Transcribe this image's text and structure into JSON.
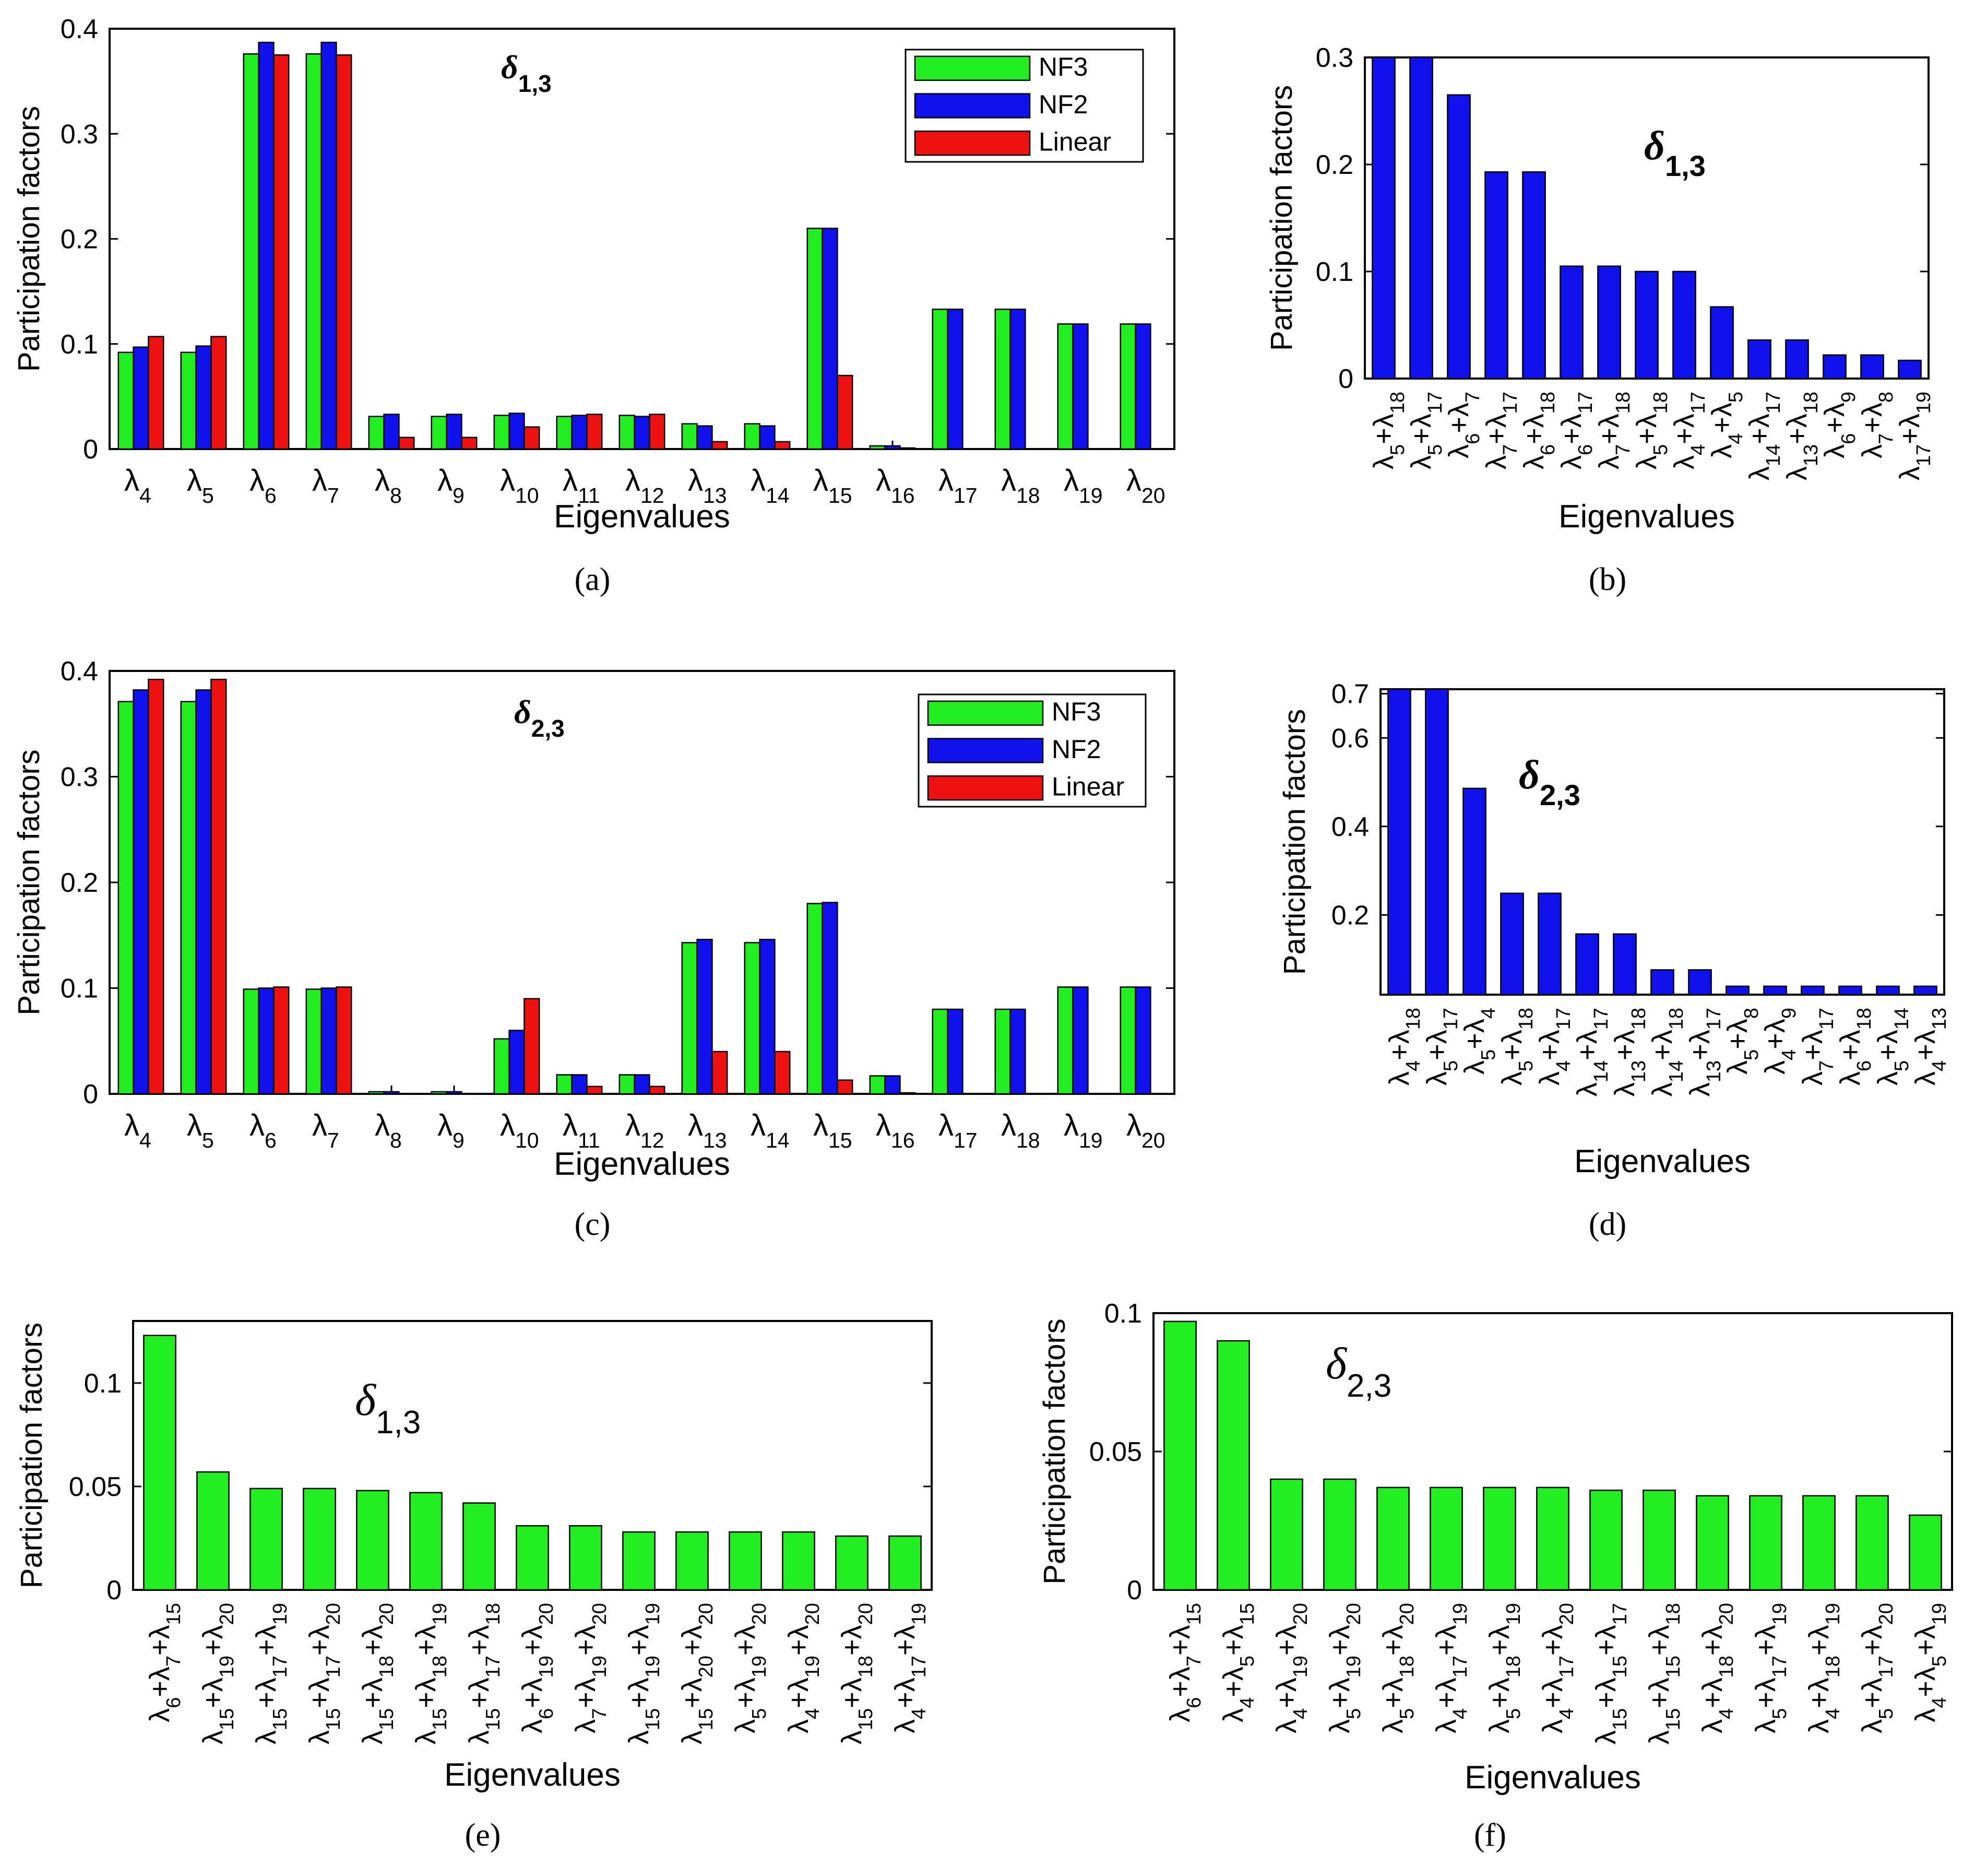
{
  "chart_data": [
    {
      "id": "a",
      "type": "bar",
      "panel_label": "(a)",
      "annotation": {
        "base": "δ",
        "sub": "1,3",
        "bold": true
      },
      "xlabel": "Eigenvalues",
      "ylabel": "Participation factors",
      "ylim": [
        0,
        0.4
      ],
      "yticks": [
        "0",
        "0.1",
        "0.2",
        "0.3",
        "0.4"
      ],
      "categories": [
        {
          "b": "λ",
          "s": "4"
        },
        {
          "b": "λ",
          "s": "5"
        },
        {
          "b": "λ",
          "s": "6"
        },
        {
          "b": "λ",
          "s": "7"
        },
        {
          "b": "λ",
          "s": "8"
        },
        {
          "b": "λ",
          "s": "9"
        },
        {
          "b": "λ",
          "s": "10"
        },
        {
          "b": "λ",
          "s": "11"
        },
        {
          "b": "λ",
          "s": "12"
        },
        {
          "b": "λ",
          "s": "13"
        },
        {
          "b": "λ",
          "s": "14"
        },
        {
          "b": "λ",
          "s": "15"
        },
        {
          "b": "λ",
          "s": "16"
        },
        {
          "b": "λ",
          "s": "17"
        },
        {
          "b": "λ",
          "s": "18"
        },
        {
          "b": "λ",
          "s": "19"
        },
        {
          "b": "λ",
          "s": "20"
        }
      ],
      "legend": "top-right",
      "series": [
        {
          "name": "NF3",
          "color": "#22ee22",
          "values": [
            0.092,
            0.092,
            0.376,
            0.376,
            0.031,
            0.031,
            0.032,
            0.031,
            0.032,
            0.024,
            0.024,
            0.21,
            0.003,
            0.133,
            0.133,
            0.119,
            0.119
          ]
        },
        {
          "name": "NF2",
          "color": "#1111ee",
          "values": [
            0.097,
            0.098,
            0.387,
            0.387,
            0.033,
            0.033,
            0.034,
            0.032,
            0.031,
            0.022,
            0.022,
            0.21,
            0.003,
            0.133,
            0.133,
            0.119,
            0.119
          ]
        },
        {
          "name": "Linear",
          "color": "#ee1111",
          "values": [
            0.107,
            0.107,
            0.375,
            0.375,
            0.011,
            0.011,
            0.021,
            0.033,
            0.033,
            0.007,
            0.007,
            0.07,
            0.001,
            0.0,
            0.0,
            0.0,
            0.0
          ]
        }
      ]
    },
    {
      "id": "b",
      "type": "bar",
      "panel_label": "(b)",
      "annotation": {
        "base": "δ",
        "sub": "1,3",
        "bold": true
      },
      "xlabel": "Eigenvalues",
      "ylabel": "Participation factors",
      "ylim": [
        0,
        0.3
      ],
      "yticks": [
        "0",
        "0.1",
        "0.2",
        "0.3"
      ],
      "categories": [
        [
          "λ",
          "5",
          "+λ",
          "18"
        ],
        [
          "λ",
          "5",
          "+λ",
          "17"
        ],
        [
          "λ",
          "6",
          "+λ",
          "7"
        ],
        [
          "λ",
          "7",
          "+λ",
          "17"
        ],
        [
          "λ",
          "6",
          "+λ",
          "18"
        ],
        [
          "λ",
          "6",
          "+λ",
          "17"
        ],
        [
          "λ",
          "7",
          "+λ",
          "18"
        ],
        [
          "λ",
          "5",
          "+λ",
          "18"
        ],
        [
          "λ",
          "4",
          "+λ",
          "17"
        ],
        [
          "λ",
          "4",
          "+λ",
          "5"
        ],
        [
          "λ",
          "14",
          "+λ",
          "17"
        ],
        [
          "λ",
          "13",
          "+λ",
          "18"
        ],
        [
          "λ",
          "6",
          "+λ",
          "9"
        ],
        [
          "λ",
          "7",
          "+λ",
          "8"
        ],
        [
          "λ",
          "17",
          "+λ",
          "19"
        ]
      ],
      "series": [
        {
          "color": "#1111ee",
          "values": [
            0.3,
            0.3,
            0.265,
            0.193,
            0.193,
            0.105,
            0.105,
            0.1,
            0.1,
            0.067,
            0.036,
            0.036,
            0.022,
            0.022,
            0.017
          ]
        }
      ]
    },
    {
      "id": "c",
      "type": "bar",
      "panel_label": "(c)",
      "annotation": {
        "base": "δ",
        "sub": "2,3",
        "bold": true
      },
      "xlabel": "Eigenvalues",
      "ylabel": "Participation factors",
      "ylim": [
        0,
        0.4
      ],
      "yticks": [
        "0",
        "0.1",
        "0.2",
        "0.3",
        "0.4"
      ],
      "categories": [
        {
          "b": "λ",
          "s": "4"
        },
        {
          "b": "λ",
          "s": "5"
        },
        {
          "b": "λ",
          "s": "6"
        },
        {
          "b": "λ",
          "s": "7"
        },
        {
          "b": "λ",
          "s": "8"
        },
        {
          "b": "λ",
          "s": "9"
        },
        {
          "b": "λ",
          "s": "10"
        },
        {
          "b": "λ",
          "s": "11"
        },
        {
          "b": "λ",
          "s": "12"
        },
        {
          "b": "λ",
          "s": "13"
        },
        {
          "b": "λ",
          "s": "14"
        },
        {
          "b": "λ",
          "s": "15"
        },
        {
          "b": "λ",
          "s": "16"
        },
        {
          "b": "λ",
          "s": "17"
        },
        {
          "b": "λ",
          "s": "18"
        },
        {
          "b": "λ",
          "s": "19"
        },
        {
          "b": "λ",
          "s": "20"
        }
      ],
      "legend": "top-right",
      "series": [
        {
          "name": "NF3",
          "color": "#22ee22",
          "values": [
            0.371,
            0.371,
            0.099,
            0.099,
            0.002,
            0.002,
            0.052,
            0.018,
            0.018,
            0.143,
            0.143,
            0.18,
            0.017,
            0.08,
            0.08,
            0.101,
            0.101
          ]
        },
        {
          "name": "NF2",
          "color": "#1111ee",
          "values": [
            0.382,
            0.382,
            0.1,
            0.1,
            0.002,
            0.002,
            0.06,
            0.018,
            0.018,
            0.146,
            0.146,
            0.181,
            0.017,
            0.08,
            0.08,
            0.101,
            0.101
          ]
        },
        {
          "name": "Linear",
          "color": "#ee1111",
          "values": [
            0.392,
            0.392,
            0.101,
            0.101,
            0.0,
            0.0,
            0.09,
            0.007,
            0.007,
            0.04,
            0.04,
            0.013,
            0.001,
            0.0,
            0.0,
            0.0,
            0.0
          ]
        }
      ]
    },
    {
      "id": "d",
      "type": "bar",
      "panel_label": "(d)",
      "annotation": {
        "base": "δ",
        "sub": "2,3",
        "bold": true
      },
      "xlabel": "Eigenvalues",
      "ylabel": "Participation factors",
      "ylim": [
        0.02,
        0.71
      ],
      "yticks": [
        "0.2",
        "0.4",
        "0.6",
        "0.7"
      ],
      "categories": [
        [
          "λ",
          "4",
          "+λ",
          "18"
        ],
        [
          "λ",
          "5",
          "+λ",
          "17"
        ],
        [
          "λ",
          "5",
          "+λ",
          "4"
        ],
        [
          "λ",
          "5",
          "+λ",
          "18"
        ],
        [
          "λ",
          "4",
          "+λ",
          "17"
        ],
        [
          "λ",
          "14",
          "+λ",
          "17"
        ],
        [
          "λ",
          "13",
          "+λ",
          "18"
        ],
        [
          "λ",
          "14",
          "+λ",
          "18"
        ],
        [
          "λ",
          "13",
          "+λ",
          "17"
        ],
        [
          "λ",
          "5",
          "+λ",
          "8"
        ],
        [
          "λ",
          "4",
          "+λ",
          "9"
        ],
        [
          "λ",
          "7",
          "+λ",
          "17"
        ],
        [
          "λ",
          "6",
          "+λ",
          "18"
        ],
        [
          "λ",
          "5",
          "+λ",
          "14"
        ],
        [
          "λ",
          "4",
          "+λ",
          "13"
        ]
      ],
      "series": [
        {
          "color": "#1111ee",
          "values": [
            0.71,
            0.71,
            0.486,
            0.249,
            0.249,
            0.157,
            0.157,
            0.076,
            0.076,
            0.039,
            0.039,
            0.039,
            0.039,
            0.039,
            0.039
          ]
        }
      ]
    },
    {
      "id": "e",
      "type": "bar",
      "panel_label": "(e)",
      "annotation": {
        "base": "δ",
        "sub": "1,3",
        "bold": false
      },
      "xlabel": "Eigenvalues",
      "ylabel": "Participation factors",
      "ylim": [
        0,
        0.13
      ],
      "yticks": [
        "0",
        "0.05",
        "0.1"
      ],
      "categories": [
        [
          "λ",
          "6",
          "+λ",
          "7",
          "+λ",
          "15"
        ],
        [
          "λ",
          "15",
          "+λ",
          "19",
          "+λ",
          "20"
        ],
        [
          "λ",
          "15",
          "+λ",
          "17",
          "+λ",
          "19"
        ],
        [
          "λ",
          "15",
          "+λ",
          "17",
          "+λ",
          "20"
        ],
        [
          "λ",
          "15",
          "+λ",
          "18",
          "+λ",
          "20"
        ],
        [
          "λ",
          "15",
          "+λ",
          "18",
          "+λ",
          "19"
        ],
        [
          "λ",
          "15",
          "+λ",
          "17",
          "+λ",
          "18"
        ],
        [
          "λ",
          "6",
          "+λ",
          "19",
          "+λ",
          "20"
        ],
        [
          "λ",
          "7",
          "+λ",
          "19",
          "+λ",
          "20"
        ],
        [
          "λ",
          "15",
          "+λ",
          "19",
          "+λ",
          "19"
        ],
        [
          "λ",
          "15",
          "+λ",
          "20",
          "+λ",
          "20"
        ],
        [
          "λ",
          "5",
          "+λ",
          "19",
          "+λ",
          "20"
        ],
        [
          "λ",
          "4",
          "+λ",
          "19",
          "+λ",
          "20"
        ],
        [
          "λ",
          "15",
          "+λ",
          "18",
          "+λ",
          "20"
        ],
        [
          "λ",
          "4",
          "+λ",
          "17",
          "+λ",
          "19"
        ]
      ],
      "series": [
        {
          "color": "#22ee22",
          "values": [
            0.123,
            0.057,
            0.049,
            0.049,
            0.048,
            0.047,
            0.042,
            0.031,
            0.031,
            0.028,
            0.028,
            0.028,
            0.028,
            0.026,
            0.026
          ]
        }
      ]
    },
    {
      "id": "f",
      "type": "bar",
      "panel_label": "(f)",
      "annotation": {
        "base": "δ",
        "sub": "2,3",
        "bold": false
      },
      "xlabel": "Eigenvalues",
      "ylabel": "Participation factors",
      "ylim": [
        0,
        0.1
      ],
      "yticks": [
        "0",
        "0.05",
        "0.1"
      ],
      "categories": [
        [
          "λ",
          "6",
          "+λ",
          "7",
          "+λ",
          "15"
        ],
        [
          "λ",
          "4",
          "+λ",
          "5",
          "+λ",
          "15"
        ],
        [
          "λ",
          "4",
          "+λ",
          "19",
          "+λ",
          "20"
        ],
        [
          "λ",
          "5",
          "+λ",
          "19",
          "+λ",
          "20"
        ],
        [
          "λ",
          "5",
          "+λ",
          "18",
          "+λ",
          "20"
        ],
        [
          "λ",
          "4",
          "+λ",
          "17",
          "+λ",
          "19"
        ],
        [
          "λ",
          "5",
          "+λ",
          "18",
          "+λ",
          "19"
        ],
        [
          "λ",
          "4",
          "+λ",
          "17",
          "+λ",
          "20"
        ],
        [
          "λ",
          "15",
          "+λ",
          "15",
          "+λ",
          "17"
        ],
        [
          "λ",
          "15",
          "+λ",
          "15",
          "+λ",
          "18"
        ],
        [
          "λ",
          "4",
          "+λ",
          "18",
          "+λ",
          "20"
        ],
        [
          "λ",
          "5",
          "+λ",
          "17",
          "+λ",
          "19"
        ],
        [
          "λ",
          "4",
          "+λ",
          "18",
          "+λ",
          "19"
        ],
        [
          "λ",
          "5",
          "+λ",
          "17",
          "+λ",
          "20"
        ],
        [
          "λ",
          "4",
          "+λ",
          "5",
          "+λ",
          "19"
        ]
      ],
      "series": [
        {
          "color": "#22ee22",
          "values": [
            0.097,
            0.09,
            0.04,
            0.04,
            0.037,
            0.037,
            0.037,
            0.037,
            0.036,
            0.036,
            0.034,
            0.034,
            0.034,
            0.034,
            0.027
          ]
        }
      ]
    }
  ]
}
